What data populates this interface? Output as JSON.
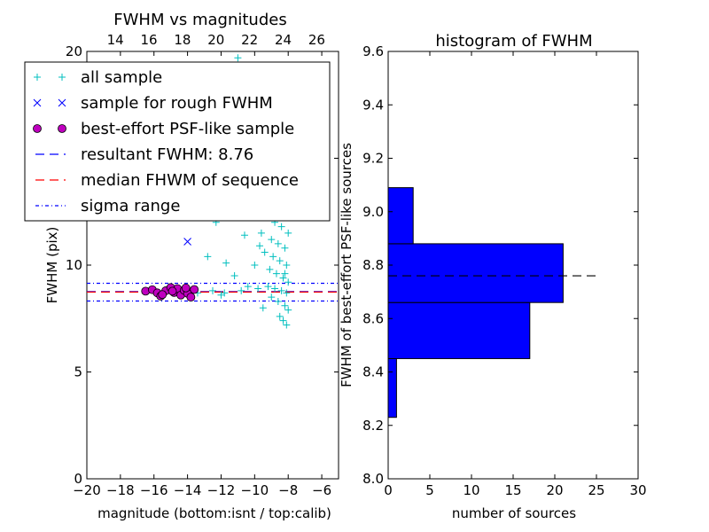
{
  "chart_data": [
    {
      "type": "scatter",
      "title": "FWHM vs magnitudes",
      "xlabel": "magnitude (bottom:isnt / top:calib)",
      "ylabel": "FWHM (pix)",
      "xlim": [
        -20,
        -5
      ],
      "ylim": [
        0,
        20
      ],
      "x_ticks": [
        -20,
        -18,
        -16,
        -14,
        -12,
        -10,
        -8,
        -6
      ],
      "y_ticks": [
        0,
        5,
        10,
        15,
        20
      ],
      "top_axis_ticks": [
        {
          "label": "14",
          "at_x": -18.3
        },
        {
          "label": "16",
          "at_x": -16.3
        },
        {
          "label": "18",
          "at_x": -14.3
        },
        {
          "label": "20",
          "at_x": -12.3
        },
        {
          "label": "22",
          "at_x": -10.3
        },
        {
          "label": "24",
          "at_x": -8.3
        },
        {
          "label": "26",
          "at_x": -6.3
        }
      ],
      "legend_position": "upper-left",
      "legend": [
        {
          "label": "all sample",
          "marker": "+",
          "color": "#00bfbf"
        },
        {
          "label": "sample for rough FWHM",
          "marker": "x",
          "color": "#0000ff"
        },
        {
          "label": "best-effort PSF-like sample",
          "marker": "o",
          "color": "#bf00bf"
        },
        {
          "label": "resultant FWHM: 8.76",
          "line": "dashed",
          "color": "#0000ff"
        },
        {
          "label": "median FHWM of sequence",
          "line": "dashed",
          "color": "#ff0000"
        },
        {
          "label": "sigma range",
          "line": "dashdot",
          "color": "#0000ff"
        }
      ],
      "series": [
        {
          "name": "all sample",
          "marker": "+",
          "color": "#00bfbf",
          "points": [
            [
              -11.0,
              19.7
            ],
            [
              -10.2,
              18.0
            ],
            [
              -9.6,
              17.1
            ],
            [
              -9.3,
              16.2
            ],
            [
              -9.9,
              15.4
            ],
            [
              -8.9,
              15.0
            ],
            [
              -9.1,
              14.4
            ],
            [
              -8.5,
              14.0
            ],
            [
              -9.5,
              13.6
            ],
            [
              -8.7,
              13.3
            ],
            [
              -10.2,
              13.0
            ],
            [
              -9.8,
              12.6
            ],
            [
              -9.3,
              12.3
            ],
            [
              -8.8,
              12.0
            ],
            [
              -8.4,
              11.8
            ],
            [
              -9.6,
              11.5
            ],
            [
              -9.0,
              11.2
            ],
            [
              -8.6,
              11.0
            ],
            [
              -8.2,
              10.8
            ],
            [
              -9.4,
              10.6
            ],
            [
              -8.9,
              10.4
            ],
            [
              -8.5,
              10.2
            ],
            [
              -8.1,
              10.0
            ],
            [
              -9.1,
              9.8
            ],
            [
              -8.7,
              9.6
            ],
            [
              -8.3,
              9.4
            ],
            [
              -8.0,
              9.2
            ],
            [
              -9.2,
              9.0
            ],
            [
              -8.8,
              8.9
            ],
            [
              -8.4,
              8.8
            ],
            [
              -8.1,
              8.7
            ],
            [
              -9.0,
              8.5
            ],
            [
              -8.6,
              8.3
            ],
            [
              -8.2,
              8.1
            ],
            [
              -8.0,
              7.9
            ],
            [
              -8.5,
              7.6
            ],
            [
              -8.3,
              7.4
            ],
            [
              -8.1,
              7.2
            ],
            [
              -9.5,
              8.0
            ],
            [
              -9.8,
              8.9
            ],
            [
              -10.4,
              9.0
            ],
            [
              -10.6,
              11.4
            ],
            [
              -11.1,
              12.6
            ],
            [
              -12.3,
              12.0
            ],
            [
              -12.8,
              10.4
            ],
            [
              -11.7,
              10.1
            ],
            [
              -11.2,
              9.5
            ],
            [
              -10.8,
              8.8
            ],
            [
              -11.8,
              8.7
            ],
            [
              -12.5,
              8.8
            ],
            [
              -13.4,
              8.7
            ],
            [
              -12.0,
              8.6
            ],
            [
              -8.6,
              12.8
            ],
            [
              -8.2,
              12.5
            ],
            [
              -8.9,
              13.8
            ],
            [
              -8.3,
              14.6
            ],
            [
              -8.6,
              15.2
            ],
            [
              -9.7,
              10.9
            ],
            [
              -10.0,
              10.0
            ],
            [
              -8.4,
              16.0
            ],
            [
              -8.0,
              11.5
            ],
            [
              -8.2,
              9.6
            ]
          ]
        },
        {
          "name": "sample for rough FWHM",
          "marker": "x",
          "color": "#0000ff",
          "points": [
            [
              -14.0,
              11.1
            ]
          ]
        },
        {
          "name": "best-effort PSF-like sample",
          "marker": "o",
          "color": "#bf00bf",
          "points": [
            [
              -16.5,
              8.78
            ],
            [
              -16.1,
              8.85
            ],
            [
              -15.8,
              8.7
            ],
            [
              -15.6,
              8.55
            ],
            [
              -15.3,
              8.8
            ],
            [
              -15.0,
              8.95
            ],
            [
              -14.8,
              8.72
            ],
            [
              -14.6,
              8.9
            ],
            [
              -14.4,
              8.6
            ],
            [
              -14.2,
              8.82
            ],
            [
              -14.0,
              8.68
            ],
            [
              -13.8,
              8.5
            ],
            [
              -13.6,
              8.86
            ],
            [
              -15.5,
              8.62
            ],
            [
              -14.9,
              8.78
            ],
            [
              -14.1,
              8.93
            ]
          ]
        }
      ],
      "reference_lines": [
        {
          "name": "resultant FWHM: 8.76",
          "y": 8.76,
          "style": "dashed",
          "color": "#0000ff"
        },
        {
          "name": "median FHWM of sequence",
          "y": 8.74,
          "style": "dashed",
          "color": "#ff0000"
        },
        {
          "name": "sigma range",
          "y": 9.15,
          "style": "dashdot",
          "color": "#0000ff"
        },
        {
          "name": "sigma range",
          "y": 8.32,
          "style": "dashdot",
          "color": "#0000ff"
        }
      ]
    },
    {
      "type": "bar",
      "orientation": "horizontal",
      "title": "histogram of FWHM",
      "xlabel": "number of sources",
      "ylabel": "FWHM of best-effort PSF-like sources",
      "xlim": [
        0,
        30
      ],
      "ylim": [
        8.0,
        9.6
      ],
      "x_ticks": [
        0,
        5,
        10,
        15,
        20,
        25,
        30
      ],
      "y_ticks": [
        8.0,
        8.2,
        8.4,
        8.6,
        8.8,
        9.0,
        9.2,
        9.4,
        9.6
      ],
      "color": "#0000ff",
      "bins": [
        {
          "from": 8.23,
          "to": 8.45,
          "count": 1
        },
        {
          "from": 8.45,
          "to": 8.66,
          "count": 17
        },
        {
          "from": 8.66,
          "to": 8.88,
          "count": 21
        },
        {
          "from": 8.88,
          "to": 9.09,
          "count": 3
        }
      ],
      "reference_lines": [
        {
          "y": 8.76,
          "x_to": 25.5,
          "style": "dashed",
          "color": "#000000"
        }
      ]
    }
  ]
}
